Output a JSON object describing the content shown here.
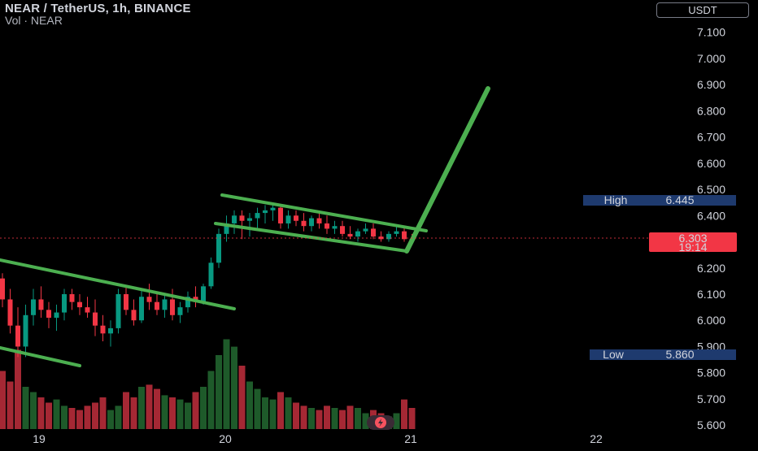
{
  "header": {
    "title": "NEAR / TetherUS, 1h, BINANCE",
    "volume_label": "Vol · NEAR"
  },
  "currency": "USDT",
  "colors": {
    "background": "#000000",
    "up": "#089981",
    "down": "#f23645",
    "vol_up": "#1e5a2a",
    "vol_down": "#a52834",
    "pattern": "#4caf50",
    "price_tag": "#f23645",
    "hl_tag": "#1e3a6e"
  },
  "chart_data": {
    "type": "candlestick",
    "title": "NEAR / TetherUS, 1h, BINANCE",
    "y_axis": {
      "ticks": [
        "7.100",
        "7.000",
        "6.900",
        "6.800",
        "6.700",
        "6.600",
        "6.500",
        "6.400",
        "6.200",
        "6.100",
        "6.000",
        "5.900",
        "5.800",
        "5.700",
        "5.600"
      ],
      "ylim": [
        5.585,
        7.13
      ]
    },
    "x_axis": {
      "ticks": [
        "19",
        "20",
        "21",
        "22"
      ]
    },
    "markers": {
      "high": {
        "label": "High",
        "value": "6.445"
      },
      "low": {
        "label": "Low",
        "value": "5.860"
      },
      "last": {
        "price": "6.303",
        "countdown": "19:14"
      }
    },
    "candles": [
      [
        6.16,
        6.18,
        6.05,
        6.08
      ],
      [
        6.08,
        6.12,
        5.95,
        5.98
      ],
      [
        5.98,
        6.05,
        5.86,
        5.9
      ],
      [
        5.9,
        6.06,
        5.86,
        6.02
      ],
      [
        6.02,
        6.12,
        5.98,
        6.08
      ],
      [
        6.08,
        6.13,
        6.01,
        6.04
      ],
      [
        6.04,
        6.07,
        5.97,
        6.01
      ],
      [
        6.01,
        6.06,
        5.96,
        6.03
      ],
      [
        6.03,
        6.12,
        6.0,
        6.1
      ],
      [
        6.1,
        6.12,
        6.04,
        6.07
      ],
      [
        6.07,
        6.1,
        6.02,
        6.05
      ],
      [
        6.05,
        6.09,
        6.01,
        6.03
      ],
      [
        6.03,
        6.08,
        5.94,
        5.98
      ],
      [
        5.98,
        6.02,
        5.92,
        5.95
      ],
      [
        5.95,
        6.0,
        5.9,
        5.97
      ],
      [
        5.97,
        6.12,
        5.95,
        6.1
      ],
      [
        6.1,
        6.13,
        6.02,
        6.04
      ],
      [
        6.04,
        6.08,
        5.98,
        6.0
      ],
      [
        6.0,
        6.12,
        5.99,
        6.09
      ],
      [
        6.09,
        6.14,
        6.04,
        6.07
      ],
      [
        6.07,
        6.11,
        6.02,
        6.04
      ],
      [
        6.04,
        6.1,
        6.01,
        6.08
      ],
      [
        6.08,
        6.12,
        6.0,
        6.02
      ],
      [
        6.02,
        6.07,
        5.99,
        6.05
      ],
      [
        6.05,
        6.11,
        6.03,
        6.09
      ],
      [
        6.09,
        6.13,
        6.05,
        6.07
      ],
      [
        6.07,
        6.14,
        6.06,
        6.13
      ],
      [
        6.13,
        6.24,
        6.12,
        6.22
      ],
      [
        6.22,
        6.35,
        6.2,
        6.33
      ],
      [
        6.33,
        6.4,
        6.3,
        6.37
      ],
      [
        6.37,
        6.42,
        6.33,
        6.4
      ],
      [
        6.4,
        6.42,
        6.31,
        6.38
      ],
      [
        6.38,
        6.41,
        6.32,
        6.39
      ],
      [
        6.39,
        6.43,
        6.35,
        6.41
      ],
      [
        6.41,
        6.44,
        6.37,
        6.42
      ],
      [
        6.42,
        6.445,
        6.38,
        6.43
      ],
      [
        6.43,
        6.44,
        6.35,
        6.37
      ],
      [
        6.37,
        6.42,
        6.35,
        6.4
      ],
      [
        6.4,
        6.42,
        6.36,
        6.38
      ],
      [
        6.38,
        6.41,
        6.34,
        6.36
      ],
      [
        6.36,
        6.4,
        6.34,
        6.39
      ],
      [
        6.39,
        6.41,
        6.35,
        6.37
      ],
      [
        6.37,
        6.4,
        6.33,
        6.35
      ],
      [
        6.35,
        6.38,
        6.33,
        6.36
      ],
      [
        6.36,
        6.38,
        6.32,
        6.33
      ],
      [
        6.33,
        6.36,
        6.31,
        6.32
      ],
      [
        6.32,
        6.35,
        6.3,
        6.34
      ],
      [
        6.34,
        6.37,
        6.33,
        6.35
      ],
      [
        6.35,
        6.37,
        6.31,
        6.32
      ],
      [
        6.32,
        6.34,
        6.3,
        6.31
      ],
      [
        6.31,
        6.34,
        6.3,
        6.33
      ],
      [
        6.33,
        6.36,
        6.32,
        6.34
      ],
      [
        6.34,
        6.36,
        6.3,
        6.31
      ],
      [
        6.31,
        6.33,
        6.29,
        6.303
      ]
    ],
    "volumes": [
      0.55,
      0.45,
      0.75,
      0.4,
      0.35,
      0.3,
      0.25,
      0.28,
      0.22,
      0.2,
      0.18,
      0.22,
      0.25,
      0.3,
      0.18,
      0.22,
      0.35,
      0.3,
      0.4,
      0.42,
      0.38,
      0.32,
      0.3,
      0.28,
      0.25,
      0.35,
      0.4,
      0.55,
      0.7,
      0.85,
      0.78,
      0.6,
      0.45,
      0.38,
      0.3,
      0.28,
      0.35,
      0.3,
      0.25,
      0.22,
      0.2,
      0.18,
      0.22,
      0.2,
      0.18,
      0.22,
      0.2,
      0.15,
      0.18,
      0.15,
      0.12,
      0.15,
      0.28,
      0.2
    ]
  }
}
